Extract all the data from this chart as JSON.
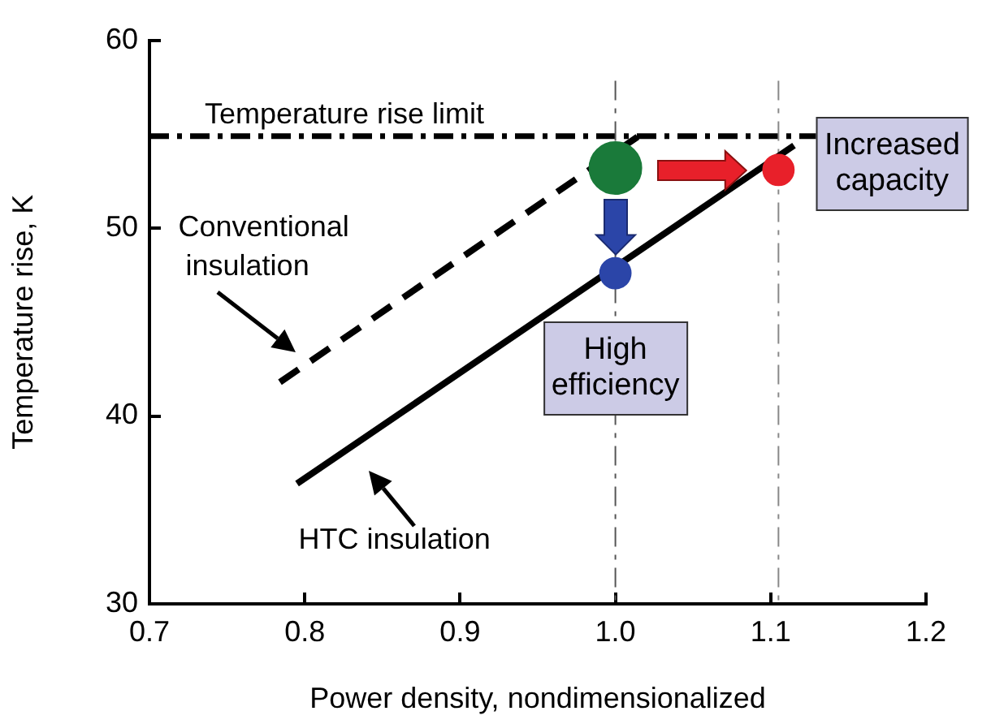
{
  "chart_data": {
    "type": "line",
    "xlabel": "Power density, nondimensionalized",
    "ylabel": "Temperature rise, K",
    "xlim": [
      0.7,
      1.2
    ],
    "xticks": [
      {
        "value": 0.7,
        "label": "0.7"
      },
      {
        "value": 0.8,
        "label": "0.8"
      },
      {
        "value": 0.9,
        "label": "0.9"
      },
      {
        "value": 1.0,
        "label": "1.0"
      },
      {
        "value": 1.1,
        "label": "1.1"
      },
      {
        "value": 1.2,
        "label": "1.2"
      }
    ],
    "ylim": [
      30,
      60
    ],
    "yticks": [
      30,
      40,
      50,
      60
    ],
    "grid": false,
    "marker": "none",
    "series": [
      {
        "name": "Conventional insulation",
        "color": "#000000",
        "line_style": "dashed",
        "x": [
          0.784,
          1.015
        ],
        "values": [
          41.8,
          54.9
        ]
      },
      {
        "name": "HTC insulation",
        "color": "#000000",
        "line_style": "solid",
        "x": [
          0.795,
          1.115
        ],
        "values": [
          36.4,
          54.4
        ]
      },
      {
        "type": "scatter",
        "marker": "circle",
        "x": [
          1.0,
          1.0,
          1.105
        ],
        "values": [
          53.2,
          47.6,
          53.1
        ],
        "sizes": [
          1,
          0.35,
          0.35
        ],
        "colors": [
          "#1a7a3a",
          "#2b45a8",
          "#e8202a"
        ]
      }
    ],
    "ref_lines": [
      {
        "axis": "y",
        "value": 54.9,
        "label": "Temperature rise limit",
        "color": "#000000",
        "line_style": "dashdot"
      },
      {
        "axis": "x",
        "value": 1.0,
        "color": "#555555",
        "line_style": "dashdot"
      },
      {
        "axis": "x",
        "value": 1.105,
        "color": "#888888",
        "line_style": "dashdot"
      }
    ],
    "annotations": [
      {
        "text": "High efficiency",
        "x": 1.0,
        "y": 42.5
      },
      "Increased capacity"
    ]
  }
}
